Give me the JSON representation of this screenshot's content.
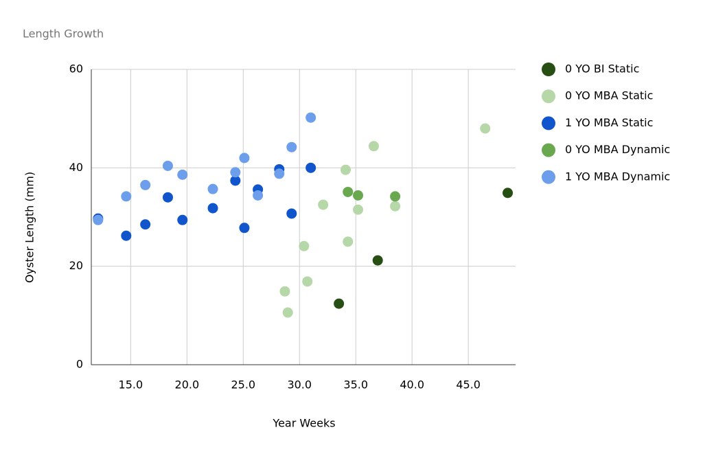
{
  "chart_data": {
    "type": "scatter",
    "title": "Length Growth",
    "x_label": "Year Weeks",
    "y_label": "Oyster Length (mm)",
    "xlim": [
      11.5,
      49.2
    ],
    "ylim": [
      0,
      60
    ],
    "xticks": [
      {
        "value": 15,
        "label": "15.0"
      },
      {
        "value": 20,
        "label": "20.0"
      },
      {
        "value": 25,
        "label": "25.0"
      },
      {
        "value": 30,
        "label": "30.0"
      },
      {
        "value": 35,
        "label": "35.0"
      },
      {
        "value": 40,
        "label": "40.0"
      },
      {
        "value": 45,
        "label": "45.0"
      }
    ],
    "yticks": [
      0,
      20,
      40,
      60
    ],
    "grid": true,
    "legend": "right",
    "series": [
      {
        "name": "0 YO BI Static",
        "color": "#274e13",
        "x": [
          33.5,
          36.95,
          48.5
        ],
        "values": [
          12.4,
          21.2,
          34.9
        ]
      },
      {
        "name": "0 YO MBA Static",
        "color": "#b6d7a8",
        "x": [
          28.7,
          28.96,
          30.4,
          30.7,
          32.1,
          34.1,
          34.3,
          35.2,
          36.6,
          38.5,
          46.5
        ],
        "values": [
          14.9,
          10.6,
          24.1,
          16.9,
          32.5,
          39.6,
          25.0,
          31.5,
          44.4,
          32.2,
          48.0
        ]
      },
      {
        "name": "1 YO MBA Static",
        "color": "#1155cc",
        "x": [
          12.1,
          14.6,
          16.3,
          18.3,
          19.6,
          22.3,
          24.3,
          25.1,
          26.3,
          28.2,
          29.3,
          31.0
        ],
        "values": [
          29.7,
          26.2,
          28.5,
          34.0,
          29.4,
          31.8,
          37.4,
          27.8,
          35.6,
          39.7,
          30.7,
          40.0
        ]
      },
      {
        "name": "0 YO MBA Dynamic",
        "color": "#6aa84f",
        "x": [
          34.3,
          35.2,
          38.5
        ],
        "values": [
          35.1,
          34.4,
          34.2
        ]
      },
      {
        "name": "1 YO MBA Dynamic",
        "color": "#6d9eeb",
        "x": [
          12.1,
          14.6,
          16.3,
          18.3,
          19.6,
          22.3,
          24.3,
          25.1,
          26.3,
          28.2,
          29.3,
          31.0
        ],
        "values": [
          29.4,
          34.2,
          36.5,
          40.4,
          38.6,
          35.7,
          39.1,
          42.0,
          34.4,
          38.8,
          44.2,
          50.2
        ]
      }
    ]
  }
}
